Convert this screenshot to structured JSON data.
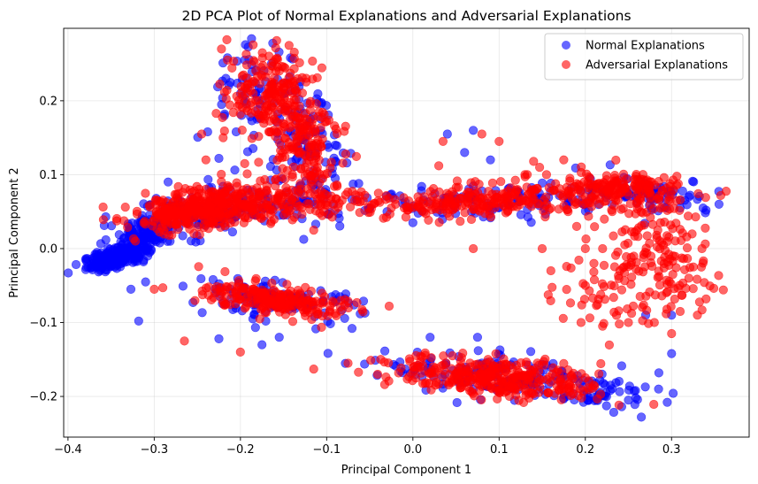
{
  "chart_data": {
    "type": "scatter",
    "title": "2D PCA Plot of Normal Explanations and Adversarial Explanations",
    "xlabel": "Principal Component 1",
    "ylabel": "Principal Component 2",
    "xlim": [
      -0.405,
      0.39
    ],
    "ylim": [
      -0.255,
      0.298
    ],
    "xticks": [
      -0.4,
      -0.3,
      -0.2,
      -0.1,
      0.0,
      0.1,
      0.2,
      0.3
    ],
    "xtick_labels": [
      "−0.4",
      "−0.3",
      "−0.2",
      "−0.1",
      "0.0",
      "0.1",
      "0.2",
      "0.3"
    ],
    "yticks": [
      -0.2,
      -0.1,
      0.0,
      0.1,
      0.2
    ],
    "ytick_labels": [
      "−0.2",
      "−0.1",
      "0.0",
      "0.1",
      "0.2"
    ],
    "grid": true,
    "legend_position": "top-right",
    "series": [
      {
        "name": "Normal Explanations",
        "color": "#0000ff",
        "alpha": 0.6,
        "clusters": [
          {
            "center": [
              -0.345,
              -0.012
            ],
            "spread": [
              0.018,
              0.007
            ],
            "count": 220,
            "angle": 0.35
          },
          {
            "center": [
              -0.315,
              0.015
            ],
            "spread": [
              0.016,
              0.012
            ],
            "count": 120,
            "angle": 0.6
          },
          {
            "center": [
              -0.26,
              0.045
            ],
            "spread": [
              0.04,
              0.014
            ],
            "count": 90,
            "angle": 0.15
          },
          {
            "center": [
              -0.18,
              0.06
            ],
            "spread": [
              0.06,
              0.016
            ],
            "count": 90,
            "angle": 0.05
          },
          {
            "center": [
              -0.17,
              0.21
            ],
            "spread": [
              0.035,
              0.03
            ],
            "count": 60,
            "angle": -0.5
          },
          {
            "center": [
              -0.125,
              0.13
            ],
            "spread": [
              0.025,
              0.045
            ],
            "count": 90,
            "angle": 0.2
          },
          {
            "center": [
              -0.16,
              -0.07
            ],
            "spread": [
              0.05,
              0.012
            ],
            "count": 110,
            "angle": -0.15
          },
          {
            "center": [
              0.1,
              0.065
            ],
            "spread": [
              0.09,
              0.012
            ],
            "count": 110,
            "angle": 0.05
          },
          {
            "center": [
              0.27,
              0.075
            ],
            "spread": [
              0.04,
              0.012
            ],
            "count": 70,
            "angle": -0.1
          },
          {
            "center": [
              0.11,
              -0.175
            ],
            "spread": [
              0.07,
              0.014
            ],
            "count": 160,
            "angle": -0.1
          },
          {
            "center": [
              0.22,
              -0.195
            ],
            "spread": [
              0.03,
              0.01
            ],
            "count": 40,
            "angle": 0.0
          }
        ],
        "points": [
          [
            -0.37,
            -0.02
          ],
          [
            -0.318,
            -0.098
          ],
          [
            -0.31,
            -0.045
          ],
          [
            -0.327,
            -0.055
          ],
          [
            -0.238,
            0.158
          ],
          [
            -0.205,
            0.158
          ],
          [
            -0.225,
            0.122
          ],
          [
            -0.215,
            0.258
          ],
          [
            -0.195,
            0.255
          ],
          [
            -0.142,
            0.258
          ],
          [
            -0.09,
            0.14
          ],
          [
            -0.065,
            0.066
          ],
          [
            -0.05,
            0.055
          ],
          [
            -0.03,
            0.05
          ],
          [
            0.0,
            0.035
          ],
          [
            0.04,
            0.155
          ],
          [
            0.07,
            0.16
          ],
          [
            0.09,
            0.12
          ],
          [
            0.06,
            0.13
          ],
          [
            -0.225,
            -0.122
          ],
          [
            -0.155,
            -0.12
          ],
          [
            -0.175,
            -0.13
          ],
          [
            -0.09,
            -0.072
          ],
          [
            0.265,
            -0.228
          ],
          [
            0.295,
            -0.208
          ],
          [
            0.3,
            -0.142
          ],
          [
            0.285,
            -0.19
          ],
          [
            0.25,
            -0.205
          ],
          [
            0.32,
            0.07
          ],
          [
            0.34,
            0.052
          ],
          [
            0.31,
            0.055
          ],
          [
            0.27,
            -0.09
          ],
          [
            0.3,
            -0.09
          ],
          [
            0.355,
            0.06
          ],
          [
            0.075,
            -0.12
          ],
          [
            0.02,
            -0.12
          ]
        ]
      },
      {
        "name": "Adversarial Explanations",
        "color": "#ff0000",
        "alpha": 0.6,
        "clusters": [
          {
            "center": [
              -0.255,
              0.05
            ],
            "spread": [
              0.035,
              0.013
            ],
            "count": 260,
            "angle": 0.2
          },
          {
            "center": [
              -0.175,
              0.062
            ],
            "spread": [
              0.06,
              0.013
            ],
            "count": 220,
            "angle": 0.05
          },
          {
            "center": [
              -0.17,
              0.215
            ],
            "spread": [
              0.025,
              0.025
            ],
            "count": 140,
            "angle": -0.6
          },
          {
            "center": [
              -0.135,
              0.155
            ],
            "spread": [
              0.022,
              0.04
            ],
            "count": 200,
            "angle": 0.25
          },
          {
            "center": [
              -0.16,
              -0.07
            ],
            "spread": [
              0.04,
              0.01
            ],
            "count": 220,
            "angle": -0.15
          },
          {
            "center": [
              0.085,
              0.065
            ],
            "spread": [
              0.08,
              0.011
            ],
            "count": 260,
            "angle": 0.05
          },
          {
            "center": [
              0.24,
              0.08
            ],
            "spread": [
              0.045,
              0.011
            ],
            "count": 150,
            "angle": -0.05
          },
          {
            "center": [
              0.28,
              0.01
            ],
            "spread": [
              0.025,
              0.035
            ],
            "count": 110,
            "angle": 0.3
          },
          {
            "center": [
              0.26,
              -0.05
            ],
            "spread": [
              0.045,
              0.03
            ],
            "count": 90,
            "angle": 0.1
          },
          {
            "center": [
              0.1,
              -0.175
            ],
            "spread": [
              0.06,
              0.013
            ],
            "count": 330,
            "angle": -0.1
          }
        ],
        "points": [
          [
            -0.222,
            0.27
          ],
          [
            -0.215,
            0.255
          ],
          [
            -0.245,
            0.155
          ],
          [
            -0.24,
            0.12
          ],
          [
            -0.22,
            0.15
          ],
          [
            -0.195,
            0.115
          ],
          [
            -0.265,
            -0.125
          ],
          [
            -0.2,
            -0.14
          ],
          [
            -0.115,
            -0.163
          ],
          [
            -0.3,
            -0.055
          ],
          [
            -0.29,
            -0.053
          ],
          [
            -0.115,
            0.025
          ],
          [
            -0.11,
            0.06
          ],
          [
            -0.125,
            0.11
          ],
          [
            -0.04,
            0.075
          ],
          [
            -0.02,
            0.06
          ],
          [
            0.03,
            0.112
          ],
          [
            0.035,
            0.145
          ],
          [
            0.08,
            0.155
          ],
          [
            0.1,
            0.145
          ],
          [
            0.14,
            0.118
          ],
          [
            0.13,
            0.1
          ],
          [
            0.175,
            0.12
          ],
          [
            0.155,
            0.1
          ],
          [
            0.18,
            0.05
          ],
          [
            0.19,
            0.03
          ],
          [
            0.2,
            0.0
          ],
          [
            0.21,
            -0.02
          ],
          [
            0.15,
            0.0
          ],
          [
            0.16,
            -0.03
          ],
          [
            0.2,
            -0.05
          ],
          [
            0.195,
            -0.1
          ],
          [
            0.22,
            -0.105
          ],
          [
            0.25,
            -0.1
          ],
          [
            0.28,
            -0.1
          ],
          [
            0.3,
            -0.115
          ],
          [
            0.34,
            -0.068
          ],
          [
            0.36,
            -0.056
          ],
          [
            0.33,
            -0.09
          ],
          [
            0.31,
            -0.085
          ],
          [
            0.32,
            -0.04
          ],
          [
            0.07,
            0.0
          ],
          [
            0.22,
            0.0
          ],
          [
            0.24,
            -0.03
          ],
          [
            -0.025,
            0.055
          ]
        ]
      }
    ]
  }
}
